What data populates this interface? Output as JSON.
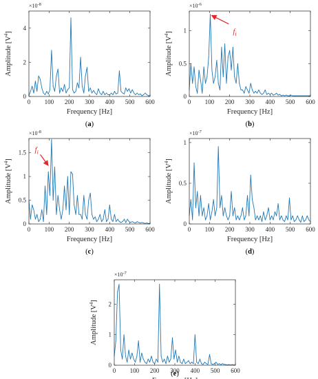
{
  "figure": {
    "line_color": "#1f77b4",
    "annotation_color": "#e8262a"
  },
  "chart_data": [
    {
      "id": "a",
      "type": "line",
      "caption_letter": "a",
      "xlabel": "Frequency [Hz]",
      "ylabel_text": "Amplitude [V",
      "ylabel_sup": "4",
      "ylabel_close": "]",
      "exponent_base": "×10",
      "exponent_power": "-8",
      "xlim": [
        0,
        600
      ],
      "ylim": [
        0,
        5
      ],
      "xticks": [
        0,
        100,
        200,
        300,
        400,
        500,
        600
      ],
      "yticks": [
        0,
        2,
        4
      ],
      "x": [
        0,
        8,
        16,
        24,
        32,
        40,
        48,
        56,
        64,
        72,
        80,
        88,
        96,
        104,
        112,
        120,
        128,
        136,
        144,
        152,
        160,
        168,
        176,
        184,
        192,
        200,
        208,
        216,
        224,
        232,
        240,
        248,
        256,
        264,
        272,
        280,
        288,
        296,
        304,
        312,
        320,
        328,
        336,
        344,
        352,
        360,
        368,
        376,
        384,
        392,
        400,
        408,
        416,
        424,
        432,
        440,
        448,
        456,
        464,
        472,
        480,
        488,
        496,
        504,
        512,
        520,
        528,
        536,
        544,
        552,
        560,
        568,
        576,
        584,
        592,
        600
      ],
      "values": [
        0.05,
        0.3,
        0.6,
        0.2,
        0.9,
        0.3,
        1.2,
        1.0,
        0.5,
        0.2,
        0.1,
        0.3,
        0.15,
        0.4,
        2.7,
        0.6,
        0.3,
        1.2,
        1.6,
        0.2,
        0.5,
        0.3,
        0.7,
        0.2,
        0.4,
        0.5,
        4.6,
        0.4,
        0.2,
        0.3,
        0.8,
        0.5,
        2.3,
        0.6,
        0.2,
        1.2,
        1.7,
        0.3,
        0.5,
        0.2,
        0.35,
        0.2,
        0.1,
        0.45,
        0.2,
        0.1,
        0.3,
        0.1,
        0.2,
        0.1,
        0.1,
        0.2,
        0.1,
        0.3,
        0.15,
        0.2,
        1.5,
        0.3,
        0.2,
        0.15,
        0.5,
        0.3,
        0.45,
        0.2,
        0.4,
        0.2,
        0.1,
        0.2,
        0.1,
        0.15,
        0.05,
        0.1,
        0.2,
        0.1,
        0.05,
        0.05
      ]
    },
    {
      "id": "b",
      "type": "line",
      "caption_letter": "b",
      "xlabel": "Frequency [Hz]",
      "ylabel_text": "Amplitude [V",
      "ylabel_sup": "4",
      "ylabel_close": "]",
      "exponent_base": "×10",
      "exponent_power": "-6",
      "xlim": [
        0,
        600
      ],
      "ylim": [
        0,
        1.3
      ],
      "xticks": [
        0,
        100,
        200,
        300,
        400,
        500,
        600
      ],
      "yticks": [
        0,
        0.5,
        1
      ],
      "yticklabels": [
        "0",
        "0.5",
        "1"
      ],
      "x": [
        0,
        8,
        16,
        24,
        32,
        40,
        48,
        56,
        64,
        72,
        80,
        88,
        96,
        104,
        112,
        120,
        128,
        136,
        144,
        152,
        160,
        168,
        176,
        184,
        192,
        200,
        208,
        216,
        224,
        232,
        240,
        248,
        256,
        264,
        272,
        280,
        288,
        296,
        304,
        312,
        320,
        328,
        336,
        344,
        352,
        360,
        368,
        376,
        384,
        392,
        400,
        408,
        416,
        424,
        432,
        440,
        448,
        456,
        464,
        472,
        480,
        488,
        496,
        504,
        512,
        520,
        528,
        536,
        544,
        552,
        560,
        568,
        576,
        584,
        592,
        600
      ],
      "values": [
        0.1,
        0.5,
        0.2,
        0.45,
        0.15,
        0.05,
        0.4,
        0.25,
        0.05,
        0.45,
        0.2,
        0.3,
        0.6,
        1.25,
        0.4,
        0.2,
        0.3,
        0.55,
        0.2,
        0.1,
        0.75,
        0.3,
        0.8,
        0.2,
        0.6,
        0.7,
        0.4,
        0.75,
        0.3,
        0.2,
        0.5,
        0.2,
        0.1,
        0.1,
        0.05,
        0.15,
        0.1,
        0.05,
        0.2,
        0.1,
        0.05,
        0.08,
        0.05,
        0.1,
        0.05,
        0.03,
        0.05,
        0.1,
        0.03,
        0.05,
        0.03,
        0.05,
        0.02,
        0.03,
        0.05,
        0.02,
        0.03,
        0.01,
        0.02,
        0.01,
        0.02,
        0.01,
        0.01,
        0.02,
        0.01,
        0.01,
        0.01,
        0.01,
        0.01,
        0.01,
        0.01,
        0.01,
        0.01,
        0.01,
        0.01,
        0.01
      ],
      "annotation": {
        "text": "f",
        "sub": "i",
        "x": 100,
        "y": 1.25
      }
    },
    {
      "id": "c",
      "type": "line",
      "caption_letter": "c",
      "xlabel": "Frequency [Hz]",
      "ylabel_text": "Amplitude [V",
      "ylabel_sup": "4",
      "ylabel_close": "]",
      "exponent_base": "×10",
      "exponent_power": "-8",
      "xlim": [
        0,
        600
      ],
      "ylim": [
        0,
        1.8
      ],
      "xticks": [
        0,
        100,
        200,
        300,
        400,
        500,
        600
      ],
      "yticks": [
        0,
        0.5,
        1,
        1.5
      ],
      "yticklabels": [
        "0",
        "0.5",
        "1",
        "1.5"
      ],
      "x": [
        0,
        8,
        16,
        24,
        32,
        40,
        48,
        56,
        64,
        72,
        80,
        88,
        96,
        104,
        112,
        120,
        128,
        136,
        144,
        152,
        160,
        168,
        176,
        184,
        192,
        200,
        208,
        216,
        224,
        232,
        240,
        248,
        256,
        264,
        272,
        280,
        288,
        296,
        304,
        312,
        320,
        328,
        336,
        344,
        352,
        360,
        368,
        376,
        384,
        392,
        400,
        408,
        416,
        424,
        432,
        440,
        448,
        456,
        464,
        472,
        480,
        488,
        496,
        504,
        512,
        520,
        528,
        536,
        544,
        552,
        560,
        568,
        576,
        584,
        592,
        600
      ],
      "values": [
        0.5,
        0.1,
        0.4,
        0.3,
        0.1,
        0.2,
        0.05,
        0.1,
        0.3,
        0.05,
        0.8,
        0.2,
        1.1,
        0.6,
        1.78,
        0.5,
        1.2,
        0.2,
        0.6,
        0.3,
        0.1,
        0.3,
        0.8,
        0.3,
        1.0,
        0.2,
        1.1,
        1.05,
        0.4,
        0.2,
        0.6,
        0.2,
        0.2,
        0.1,
        0.6,
        0.2,
        0.1,
        0.5,
        0.65,
        0.2,
        0.1,
        0.15,
        0.05,
        0.1,
        0.2,
        0.05,
        0.1,
        0.3,
        0.05,
        0.1,
        0.4,
        0.1,
        0.05,
        0.2,
        0.05,
        0.1,
        0.05,
        0.03,
        0.05,
        0.1,
        0.03,
        0.1,
        0.05,
        0.03,
        0.05,
        0.03,
        0.02,
        0.05,
        0.03,
        0.02,
        0.03,
        0.02,
        0.01,
        0.02,
        0.01,
        0.01
      ],
      "annotation": {
        "text": "f",
        "sub": "i",
        "x": 104,
        "y": 1.2
      }
    },
    {
      "id": "d",
      "type": "line",
      "caption_letter": "d",
      "xlabel": "Frequency [Hz]",
      "ylabel_text": "Amplitude [V",
      "ylabel_sup": "4",
      "ylabel_close": "]",
      "exponent_base": "×10",
      "exponent_power": "-7",
      "xlim": [
        0,
        600
      ],
      "ylim": [
        0,
        1.05
      ],
      "xticks": [
        0,
        100,
        200,
        300,
        400,
        500,
        600
      ],
      "yticks": [
        0,
        0.5,
        1
      ],
      "yticklabels": [
        "0",
        "0.5",
        "1"
      ],
      "x": [
        0,
        8,
        16,
        24,
        32,
        40,
        48,
        56,
        64,
        72,
        80,
        88,
        96,
        104,
        112,
        120,
        128,
        136,
        144,
        152,
        160,
        168,
        176,
        184,
        192,
        200,
        208,
        216,
        224,
        232,
        240,
        248,
        256,
        264,
        272,
        280,
        288,
        296,
        304,
        312,
        320,
        328,
        336,
        344,
        352,
        360,
        368,
        376,
        384,
        392,
        400,
        408,
        416,
        424,
        432,
        440,
        448,
        456,
        464,
        472,
        480,
        488,
        496,
        504,
        512,
        520,
        528,
        536,
        544,
        552,
        560,
        568,
        576,
        584,
        592,
        600
      ],
      "values": [
        0.1,
        0.3,
        0.05,
        0.75,
        0.2,
        0.4,
        0.1,
        0.35,
        0.1,
        0.2,
        0.05,
        0.1,
        0.25,
        0.05,
        0.15,
        0.3,
        0.1,
        0.2,
        0.95,
        0.2,
        0.35,
        0.1,
        0.2,
        0.1,
        0.05,
        0.1,
        0.4,
        0.1,
        0.2,
        0.05,
        0.1,
        0.05,
        0.1,
        0.2,
        0.05,
        0.1,
        0.35,
        0.1,
        0.6,
        0.3,
        0.2,
        0.05,
        0.1,
        0.05,
        0.1,
        0.03,
        0.15,
        0.05,
        0.1,
        0.2,
        0.05,
        0.1,
        0.05,
        0.15,
        0.1,
        0.25,
        0.05,
        0.1,
        0.05,
        0.03,
        0.1,
        0.05,
        0.32,
        0.05,
        0.1,
        0.03,
        0.05,
        0.1,
        0.05,
        0.02,
        0.1,
        0.03,
        0.05,
        0.1,
        0.05,
        0.03
      ]
    },
    {
      "id": "e",
      "type": "line",
      "caption_letter": "e",
      "xlabel": "Frequency [Hz]",
      "ylabel_text": "Amplitude [V",
      "ylabel_sup": "4",
      "ylabel_close": "]",
      "exponent_base": "×10",
      "exponent_power": "-7",
      "xlim": [
        0,
        600
      ],
      "ylim": [
        0,
        2.8
      ],
      "xticks": [
        0,
        100,
        200,
        300,
        400,
        500,
        600
      ],
      "yticks": [
        0,
        1,
        2
      ],
      "x": [
        0,
        8,
        16,
        24,
        32,
        40,
        48,
        56,
        64,
        72,
        80,
        88,
        96,
        104,
        112,
        120,
        128,
        136,
        144,
        152,
        160,
        168,
        176,
        184,
        192,
        200,
        208,
        216,
        224,
        232,
        240,
        248,
        256,
        264,
        272,
        280,
        288,
        296,
        304,
        312,
        320,
        328,
        336,
        344,
        352,
        360,
        368,
        376,
        384,
        392,
        400,
        408,
        416,
        424,
        432,
        440,
        448,
        456,
        464,
        472,
        480,
        488,
        496,
        504,
        512,
        520,
        528,
        536,
        544,
        552,
        560,
        568,
        576,
        584,
        592,
        600
      ],
      "values": [
        0.3,
        0.8,
        2.4,
        2.65,
        0.5,
        0.2,
        1.0,
        0.3,
        0.1,
        0.5,
        0.2,
        0.4,
        0.2,
        0.1,
        0.3,
        0.8,
        0.1,
        0.4,
        0.2,
        0.1,
        0.05,
        0.2,
        0.1,
        0.3,
        0.1,
        0.05,
        0.2,
        0.1,
        2.65,
        0.3,
        0.1,
        0.2,
        0.05,
        0.3,
        0.1,
        0.2,
        0.9,
        0.2,
        0.5,
        0.1,
        0.3,
        0.1,
        0.05,
        0.2,
        0.05,
        0.1,
        0.15,
        0.05,
        0.1,
        0.05,
        1.0,
        0.1,
        0.05,
        0.2,
        0.05,
        0.03,
        0.1,
        0.05,
        0.03,
        0.35,
        0.05,
        0.03,
        0.05,
        0.1,
        0.03,
        0.05,
        0.02,
        0.05,
        0.03,
        0.02,
        0.01,
        0.02,
        0.01,
        0.02,
        0.01,
        0.01
      ]
    }
  ]
}
